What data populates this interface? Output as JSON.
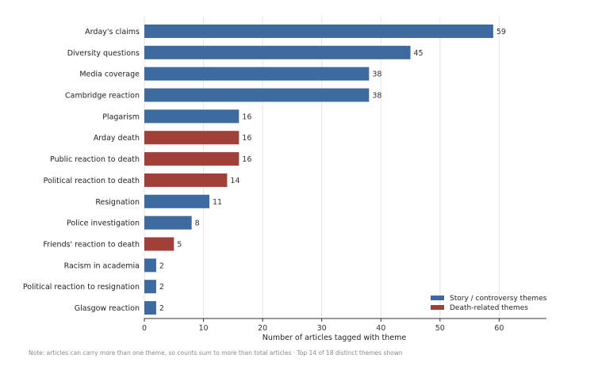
{
  "chart_data": {
    "type": "bar",
    "orientation": "horizontal",
    "categories": [
      "Arday's claims",
      "Diversity questions",
      "Media coverage",
      "Cambridge reaction",
      "Plagarism",
      "Arday death",
      "Public reaction to death",
      "Political reaction to death",
      "Resignation",
      "Police investigation",
      "Friends' reaction to death",
      "Racism in academia",
      "Political reaction to resignation",
      "Glasgow reaction"
    ],
    "values": [
      59,
      45,
      38,
      38,
      16,
      16,
      16,
      14,
      11,
      8,
      5,
      2,
      2,
      2
    ],
    "groups": [
      "story",
      "story",
      "story",
      "story",
      "story",
      "death",
      "death",
      "death",
      "story",
      "story",
      "death",
      "story",
      "story",
      "story"
    ],
    "legend": [
      {
        "key": "story",
        "label": "Story / controversy themes",
        "color": "#3d6aa0"
      },
      {
        "key": "death",
        "label": "Death-related themes",
        "color": "#a04038"
      }
    ],
    "legend_position": "bottom-right",
    "xlabel": "Number of articles tagged with theme",
    "ylabel": "",
    "xlim": [
      0,
      68
    ],
    "xticks": [
      0,
      10,
      20,
      30,
      40,
      50,
      60
    ],
    "grid": "vertical",
    "data_labels": true
  },
  "footnote": "Note: articles can carry more than one theme, so counts sum to more than total articles · Top 14 of 18 distinct themes shown"
}
